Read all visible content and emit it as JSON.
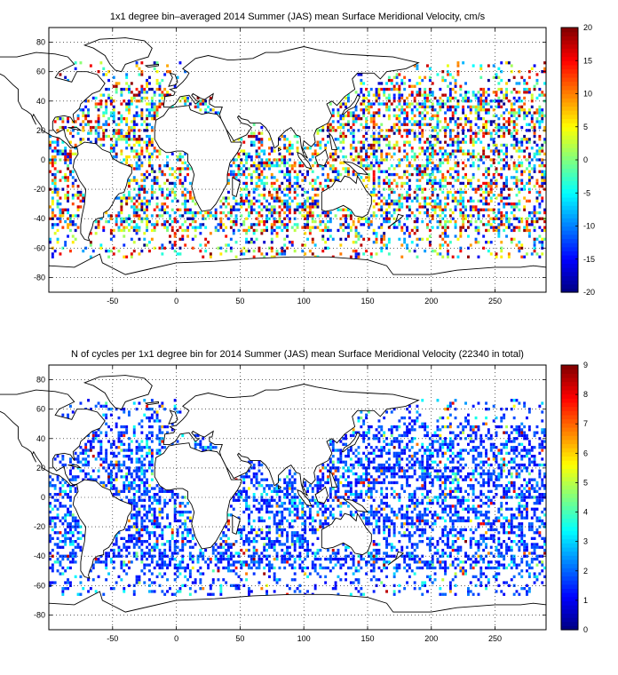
{
  "panels": [
    {
      "title": "1x1 degree bin–averaged 2014 Summer (JAS) mean Surface Meridional Velocity, cm/s",
      "x_ticks": [
        "-50",
        "0",
        "50",
        "100",
        "150",
        "200",
        "250"
      ],
      "y_ticks": [
        "80",
        "60",
        "40",
        "20",
        "0",
        "-20",
        "-40",
        "-60",
        "-80"
      ],
      "colorbar_ticks": [
        "20",
        "15",
        "10",
        "5",
        "0",
        "-5",
        "-10",
        "-15",
        "-20"
      ]
    },
    {
      "title": "N of cycles per 1x1 degree bin for 2014 Summer (JAS) mean Surface Meridional Velocity (22340 in total)",
      "x_ticks": [
        "-50",
        "0",
        "50",
        "100",
        "150",
        "200",
        "250"
      ],
      "y_ticks": [
        "80",
        "60",
        "40",
        "20",
        "0",
        "-20",
        "-40",
        "-60",
        "-80"
      ],
      "colorbar_ticks": [
        "9",
        "8",
        "7",
        "6",
        "5",
        "4",
        "3",
        "2",
        "1",
        "0"
      ]
    }
  ],
  "chart_data": [
    {
      "type": "heatmap",
      "title": "1x1 degree bin–averaged 2014 Summer (JAS) mean Surface Meridional Velocity, cm/s",
      "xlim": [
        -100,
        290
      ],
      "ylim": [
        -90,
        90
      ],
      "x_ticks": [
        -50,
        0,
        50,
        100,
        150,
        200,
        250
      ],
      "y_ticks": [
        80,
        60,
        40,
        20,
        0,
        -20,
        -40,
        -60,
        -80
      ],
      "colorbar": {
        "min": -20,
        "max": 20,
        "ticks": [
          20,
          15,
          10,
          5,
          0,
          -5,
          -10,
          -15,
          -20
        ],
        "colormap": "jet"
      },
      "grid": true
    },
    {
      "type": "heatmap",
      "title": "N of cycles per 1x1 degree bin for 2014 Summer (JAS) mean Surface Meridional Velocity (22340 in total)",
      "xlim": [
        -100,
        290
      ],
      "ylim": [
        -90,
        90
      ],
      "x_ticks": [
        -50,
        0,
        50,
        100,
        150,
        200,
        250
      ],
      "y_ticks": [
        80,
        60,
        40,
        20,
        0,
        -20,
        -40,
        -60,
        -80
      ],
      "colorbar": {
        "min": 0,
        "max": 9,
        "ticks": [
          9,
          8,
          7,
          6,
          5,
          4,
          3,
          2,
          1,
          0
        ],
        "colormap": "jet"
      },
      "total_cycles": 22340,
      "grid": true
    }
  ]
}
